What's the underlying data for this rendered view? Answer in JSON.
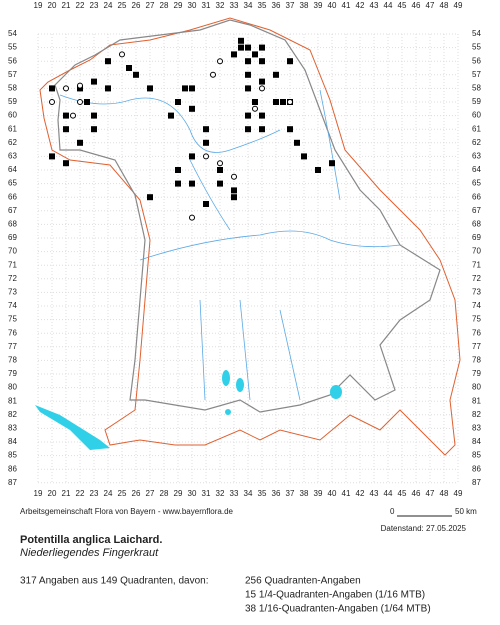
{
  "grid_labels": {
    "columns": [
      19,
      20,
      21,
      22,
      23,
      24,
      25,
      26,
      27,
      28,
      29,
      30,
      31,
      32,
      33,
      34,
      35,
      36,
      37,
      38,
      39,
      40,
      41,
      42,
      43,
      44,
      45,
      46,
      47,
      48,
      49
    ],
    "rows": [
      54,
      55,
      56,
      57,
      58,
      59,
      60,
      61,
      62,
      63,
      64,
      65,
      66,
      67,
      68,
      69,
      70,
      71,
      72,
      73,
      74,
      75,
      76,
      77,
      78,
      79,
      80,
      81,
      82,
      83,
      84,
      85,
      86,
      87
    ]
  },
  "credit": "Arbeitsgemeinschaft Flora von Bayern - www.bayernflora.de",
  "scale": {
    "start": "0",
    "end": "50 km"
  },
  "date": "Datenstand: 27.05.2025",
  "title": "Potentilla anglica Laichard.",
  "subtitle": "Niederliegendes Fingerkraut",
  "stats": {
    "summary": "317 Angaben aus 149 Quadranten, davon:",
    "lines": [
      "256 Quadranten-Angaben",
      "15 1/4-Quadranten-Angaben (1/16 MTB)",
      "38 1/16-Quadranten-Angaben (1/64 MTB)"
    ]
  }
}
